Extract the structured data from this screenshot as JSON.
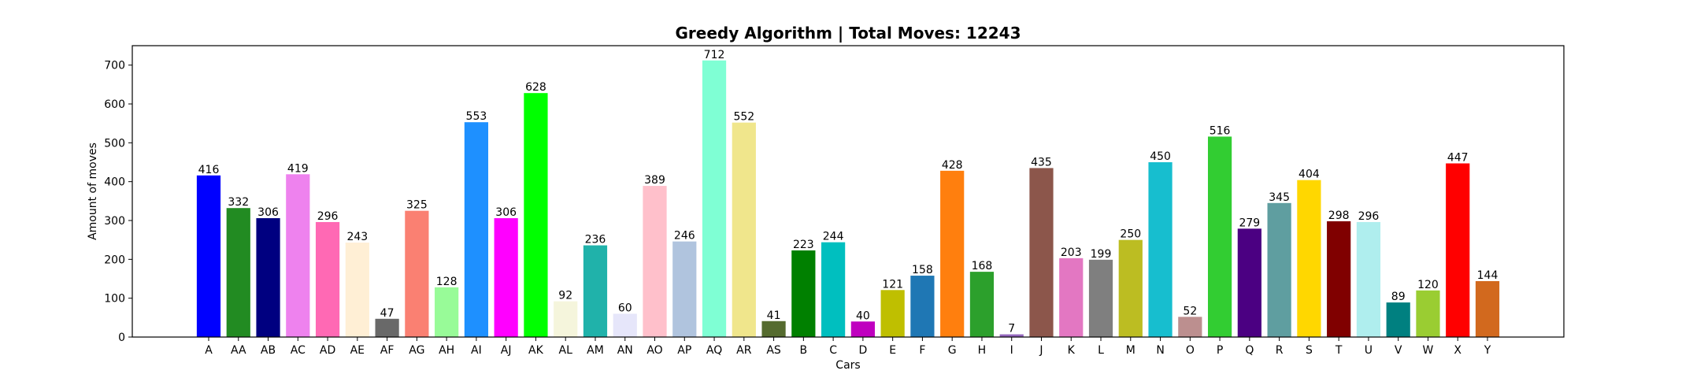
{
  "chart_data": {
    "type": "bar",
    "title": "Greedy Algorithm | Total Moves: 12243",
    "xlabel": "Cars",
    "ylabel": "Amount of moves",
    "ylim": [
      0,
      750
    ],
    "yticks": [
      0,
      100,
      200,
      300,
      400,
      500,
      600,
      700
    ],
    "grid": false,
    "categories": [
      "A",
      "AA",
      "AB",
      "AC",
      "AD",
      "AE",
      "AF",
      "AG",
      "AH",
      "AI",
      "AJ",
      "AK",
      "AL",
      "AM",
      "AN",
      "AO",
      "AP",
      "AQ",
      "AR",
      "AS",
      "B",
      "C",
      "D",
      "E",
      "F",
      "G",
      "H",
      "I",
      "J",
      "K",
      "L",
      "M",
      "N",
      "O",
      "P",
      "Q",
      "R",
      "S",
      "T",
      "U",
      "V",
      "W",
      "X",
      "Y"
    ],
    "values": [
      416,
      332,
      306,
      419,
      296,
      243,
      47,
      325,
      128,
      553,
      306,
      628,
      92,
      236,
      60,
      389,
      246,
      712,
      552,
      41,
      223,
      244,
      40,
      121,
      158,
      428,
      168,
      7,
      435,
      203,
      199,
      250,
      450,
      52,
      516,
      279,
      345,
      404,
      298,
      296,
      89,
      120,
      447,
      144
    ],
    "colors": [
      "#0000ff",
      "#228b22",
      "#000080",
      "#ee82ee",
      "#ff69b4",
      "#ffefd5",
      "#696969",
      "#fa8072",
      "#98fb98",
      "#1e90ff",
      "#ff00ff",
      "#00ff00",
      "#f5f5dc",
      "#20b2aa",
      "#e6e6fa",
      "#ffc0cb",
      "#b0c4de",
      "#7fffd4",
      "#f0e68c",
      "#556b2f",
      "#008000",
      "#00bfbf",
      "#bf00bf",
      "#bfbf00",
      "#1f77b4",
      "#ff7f0e",
      "#2ca02c",
      "#9467bd",
      "#8c564b",
      "#e377c2",
      "#7f7f7f",
      "#bcbd22",
      "#17becf",
      "#bc8f8f",
      "#32cd32",
      "#4b0082",
      "#5f9ea0",
      "#ffd700",
      "#800000",
      "#afeeee",
      "#008080",
      "#9acd32",
      "#ff0000",
      "#d2691e"
    ]
  }
}
